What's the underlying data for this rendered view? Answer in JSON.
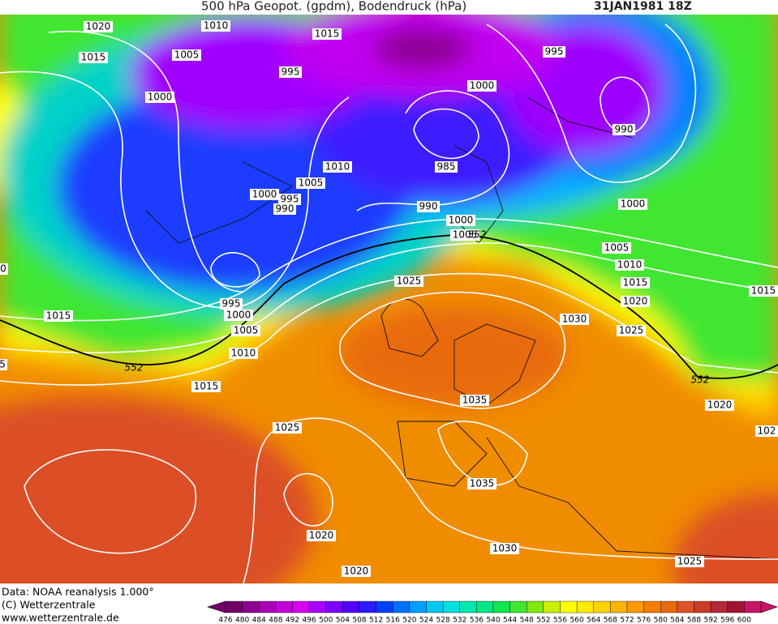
{
  "header": {
    "title": "500 hPa Geopot. (gpdm), Bodendruck (hPa)",
    "date": "31JAN1981 18Z"
  },
  "isobar_labels": [
    "1020",
    "1010",
    "1015",
    "995",
    "995",
    "1015",
    "1005",
    "1000",
    "1000",
    "990",
    "1010",
    "985",
    "1005",
    "1000",
    "995",
    "990",
    "990",
    "1000",
    "1000",
    "1005",
    "552",
    "1005",
    "1010",
    "1025",
    "1015",
    "1020",
    "1015",
    "995",
    "1000",
    "1005",
    "1010",
    "1015",
    "1030",
    "1025",
    "552",
    "552",
    "1035",
    "1020",
    "1025",
    "1035",
    "1020",
    "1030",
    "1020",
    "1025",
    "102",
    "0",
    "5",
    "1015"
  ],
  "footer": {
    "lines": [
      "Data: NOAA reanalysis 1.000°",
      "(C) Wetterzentrale",
      "www.wetterzentrale.de"
    ]
  },
  "legend": {
    "levels": [
      476,
      480,
      484,
      488,
      492,
      496,
      500,
      504,
      508,
      512,
      516,
      520,
      524,
      528,
      532,
      536,
      540,
      544,
      548,
      552,
      556,
      560,
      564,
      568,
      572,
      576,
      580,
      584,
      588,
      592,
      596,
      600
    ],
    "colors": [
      "#6e0066",
      "#8c0090",
      "#a800b4",
      "#c400d8",
      "#d800f0",
      "#a800ff",
      "#7c00ff",
      "#5000ff",
      "#2c1cff",
      "#0040ff",
      "#0070ff",
      "#00a0ff",
      "#00c8f0",
      "#00e0dc",
      "#00e6b0",
      "#00e682",
      "#10e650",
      "#40e632",
      "#80e810",
      "#c8f000",
      "#ffff00",
      "#ffea00",
      "#ffd200",
      "#ffb400",
      "#ff9a00",
      "#f47e00",
      "#e86a10",
      "#dc5428",
      "#c83c28",
      "#b42838",
      "#a01432",
      "#c81464"
    ]
  }
}
